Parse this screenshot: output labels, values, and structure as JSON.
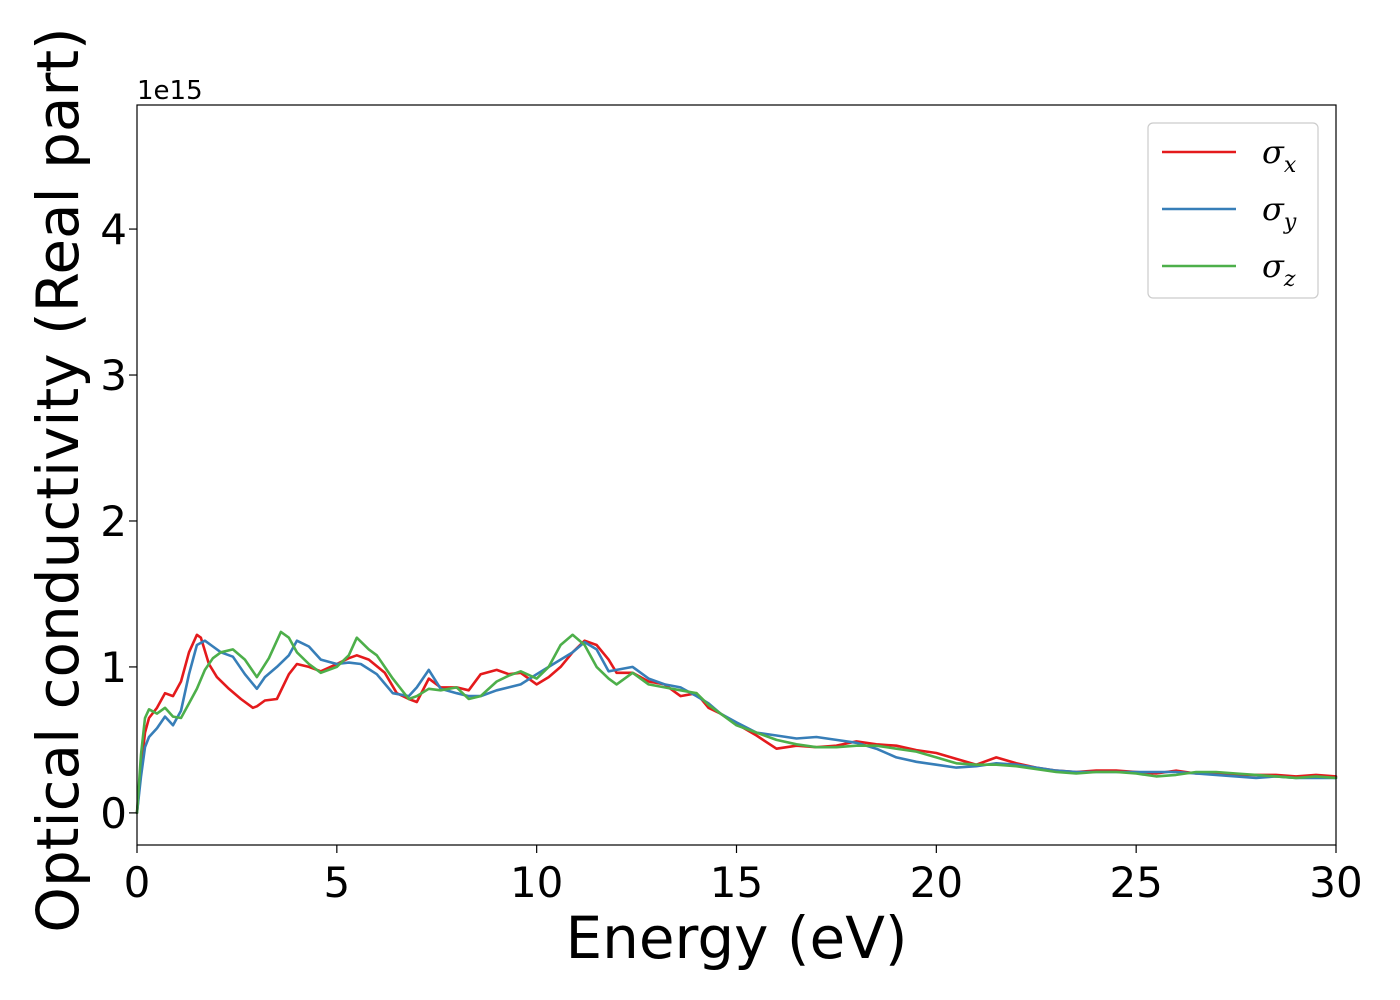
{
  "chart_data": {
    "type": "line",
    "xlabel": "Energy (eV)",
    "ylabel": "Optical conductivity (Real part)",
    "y_offset_label": "1e15",
    "xlim": [
      0,
      30
    ],
    "ylim": [
      -0.22,
      4.85
    ],
    "xticks": [
      0,
      5,
      10,
      15,
      20,
      25,
      30
    ],
    "xtick_labels": [
      "0",
      "5",
      "10",
      "15",
      "20",
      "25",
      "30"
    ],
    "yticks": [
      0,
      1,
      2,
      3,
      4
    ],
    "ytick_labels": [
      "0",
      "1",
      "2",
      "3",
      "4"
    ],
    "grid": false,
    "legend_position": "top-right",
    "series": [
      {
        "name": "σx",
        "legend_base": "σ",
        "legend_sub": "x",
        "color": "#e41a1c",
        "x": [
          0,
          0.1,
          0.2,
          0.3,
          0.5,
          0.7,
          0.9,
          1.1,
          1.3,
          1.5,
          1.6,
          1.8,
          2.0,
          2.3,
          2.6,
          2.9,
          3.0,
          3.2,
          3.5,
          3.8,
          4.0,
          4.3,
          4.6,
          5.0,
          5.3,
          5.5,
          5.8,
          6.2,
          6.5,
          6.8,
          7.0,
          7.3,
          7.6,
          8.0,
          8.3,
          8.6,
          9.0,
          9.3,
          9.6,
          10.0,
          10.3,
          10.6,
          10.9,
          11.2,
          11.5,
          11.8,
          12.0,
          12.4,
          12.8,
          13.2,
          13.6,
          14.0,
          14.3,
          14.6,
          15.0,
          15.5,
          16.0,
          16.5,
          17.0,
          17.5,
          18.0,
          18.5,
          19.0,
          19.5,
          20.0,
          20.5,
          21.0,
          21.5,
          22.0,
          22.5,
          23.0,
          23.5,
          24.0,
          24.5,
          25.0,
          25.5,
          26.0,
          26.5,
          27.0,
          27.5,
          28.0,
          28.5,
          29.0,
          29.5,
          30.0
        ],
        "y": [
          0.0,
          0.3,
          0.55,
          0.65,
          0.72,
          0.82,
          0.8,
          0.9,
          1.1,
          1.22,
          1.2,
          1.02,
          0.93,
          0.85,
          0.78,
          0.72,
          0.73,
          0.77,
          0.78,
          0.95,
          1.02,
          1.0,
          0.97,
          1.02,
          1.06,
          1.08,
          1.05,
          0.96,
          0.82,
          0.78,
          0.76,
          0.92,
          0.86,
          0.86,
          0.84,
          0.95,
          0.98,
          0.95,
          0.96,
          0.88,
          0.93,
          1.0,
          1.1,
          1.18,
          1.15,
          1.05,
          0.96,
          0.96,
          0.9,
          0.88,
          0.8,
          0.82,
          0.72,
          0.68,
          0.61,
          0.53,
          0.44,
          0.46,
          0.45,
          0.46,
          0.49,
          0.47,
          0.46,
          0.43,
          0.41,
          0.37,
          0.33,
          0.38,
          0.34,
          0.31,
          0.29,
          0.28,
          0.29,
          0.29,
          0.28,
          0.27,
          0.29,
          0.27,
          0.27,
          0.26,
          0.26,
          0.26,
          0.25,
          0.26,
          0.25
        ]
      },
      {
        "name": "σy",
        "legend_base": "σ",
        "legend_sub": "y",
        "color": "#377eb8",
        "x": [
          0,
          0.1,
          0.2,
          0.3,
          0.5,
          0.7,
          0.9,
          1.1,
          1.3,
          1.5,
          1.7,
          1.9,
          2.1,
          2.4,
          2.7,
          3.0,
          3.2,
          3.5,
          3.8,
          4.0,
          4.3,
          4.6,
          5.0,
          5.3,
          5.6,
          6.0,
          6.4,
          6.8,
          7.0,
          7.3,
          7.6,
          8.0,
          8.3,
          8.6,
          9.0,
          9.3,
          9.6,
          10.0,
          10.3,
          10.6,
          10.9,
          11.2,
          11.5,
          11.8,
          12.0,
          12.4,
          12.8,
          13.2,
          13.6,
          14.0,
          14.3,
          14.6,
          15.0,
          15.5,
          16.0,
          16.5,
          17.0,
          17.5,
          18.0,
          18.5,
          19.0,
          19.5,
          20.0,
          20.5,
          21.0,
          21.5,
          22.0,
          22.5,
          23.0,
          23.5,
          24.0,
          24.5,
          25.0,
          25.5,
          26.0,
          26.5,
          27.0,
          27.5,
          28.0,
          28.5,
          29.0,
          29.5,
          30.0
        ],
        "y": [
          0.0,
          0.25,
          0.45,
          0.52,
          0.58,
          0.66,
          0.6,
          0.7,
          0.95,
          1.15,
          1.18,
          1.14,
          1.1,
          1.07,
          0.95,
          0.85,
          0.93,
          1.0,
          1.08,
          1.18,
          1.14,
          1.05,
          1.02,
          1.03,
          1.02,
          0.95,
          0.82,
          0.8,
          0.86,
          0.98,
          0.85,
          0.82,
          0.8,
          0.8,
          0.84,
          0.86,
          0.88,
          0.95,
          1.0,
          1.05,
          1.1,
          1.17,
          1.12,
          0.97,
          0.98,
          1.0,
          0.92,
          0.88,
          0.86,
          0.8,
          0.75,
          0.68,
          0.62,
          0.55,
          0.53,
          0.51,
          0.52,
          0.5,
          0.48,
          0.44,
          0.38,
          0.35,
          0.33,
          0.31,
          0.32,
          0.34,
          0.33,
          0.31,
          0.29,
          0.28,
          0.28,
          0.28,
          0.28,
          0.28,
          0.28,
          0.27,
          0.26,
          0.25,
          0.24,
          0.25,
          0.24,
          0.24,
          0.24
        ]
      },
      {
        "name": "σz",
        "legend_base": "σ",
        "legend_sub": "z",
        "color": "#4daf4a",
        "x": [
          0,
          0.1,
          0.2,
          0.3,
          0.5,
          0.7,
          0.9,
          1.1,
          1.3,
          1.5,
          1.7,
          1.9,
          2.1,
          2.4,
          2.7,
          3.0,
          3.3,
          3.6,
          3.8,
          4.0,
          4.3,
          4.6,
          5.0,
          5.3,
          5.5,
          5.8,
          6.0,
          6.4,
          6.8,
          7.0,
          7.3,
          7.6,
          8.0,
          8.3,
          8.6,
          9.0,
          9.3,
          9.6,
          10.0,
          10.3,
          10.6,
          10.9,
          11.2,
          11.5,
          11.8,
          12.0,
          12.4,
          12.8,
          13.2,
          13.6,
          14.0,
          14.3,
          14.6,
          15.0,
          15.5,
          16.0,
          16.5,
          17.0,
          17.5,
          18.0,
          18.5,
          19.0,
          19.5,
          20.0,
          20.5,
          21.0,
          21.5,
          22.0,
          22.5,
          23.0,
          23.5,
          24.0,
          24.5,
          25.0,
          25.5,
          26.0,
          26.5,
          27.0,
          27.5,
          28.0,
          28.5,
          29.0,
          29.5,
          30.0
        ],
        "y": [
          0.0,
          0.4,
          0.65,
          0.71,
          0.68,
          0.72,
          0.66,
          0.65,
          0.75,
          0.85,
          0.98,
          1.06,
          1.1,
          1.12,
          1.05,
          0.93,
          1.06,
          1.24,
          1.2,
          1.1,
          1.02,
          0.96,
          1.0,
          1.08,
          1.2,
          1.12,
          1.08,
          0.92,
          0.78,
          0.8,
          0.85,
          0.84,
          0.86,
          0.78,
          0.8,
          0.9,
          0.94,
          0.97,
          0.92,
          1.0,
          1.15,
          1.22,
          1.15,
          1.0,
          0.92,
          0.88,
          0.96,
          0.88,
          0.86,
          0.84,
          0.82,
          0.74,
          0.68,
          0.6,
          0.55,
          0.5,
          0.47,
          0.45,
          0.45,
          0.46,
          0.46,
          0.44,
          0.42,
          0.38,
          0.34,
          0.33,
          0.33,
          0.32,
          0.3,
          0.28,
          0.27,
          0.28,
          0.28,
          0.27,
          0.25,
          0.26,
          0.28,
          0.28,
          0.27,
          0.26,
          0.25,
          0.24,
          0.25,
          0.24
        ]
      }
    ]
  }
}
